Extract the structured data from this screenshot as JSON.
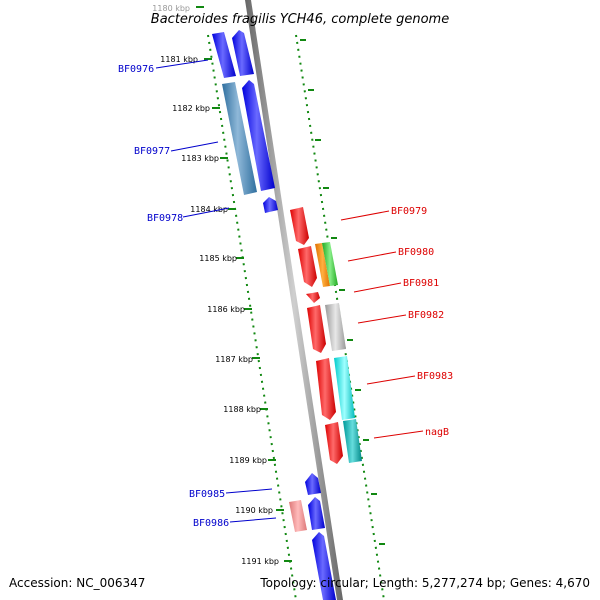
{
  "title": "Bacteroides fragilis YCH46, complete genome",
  "accession": "Accession: NC_006347",
  "summary": "Topology: circular; Length: 5,277,274 bp; Genes: 4,670",
  "ticks": [
    "1180 kbp",
    "1181 kbp",
    "1182 kbp",
    "1183 kbp",
    "1184 kbp",
    "1185 kbp",
    "1186 kbp",
    "1187 kbp",
    "1188 kbp",
    "1189 kbp",
    "1190 kbp",
    "1191 kbp"
  ],
  "genes_reverse": [
    "BF0976",
    "BF0977",
    "BF0978",
    "BF0985",
    "BF0986"
  ],
  "genes_forward": [
    "BF0979",
    "BF0980",
    "BF0981",
    "BF0982",
    "BF0983",
    "nagB"
  ],
  "colors": {
    "reverse_strand": "#0000ff",
    "forward_strand": "#ff0000",
    "backbone": "#888888",
    "tick_marks": "#118811",
    "label_reverse": "#0000cc",
    "label_forward": "#dd0000"
  }
}
